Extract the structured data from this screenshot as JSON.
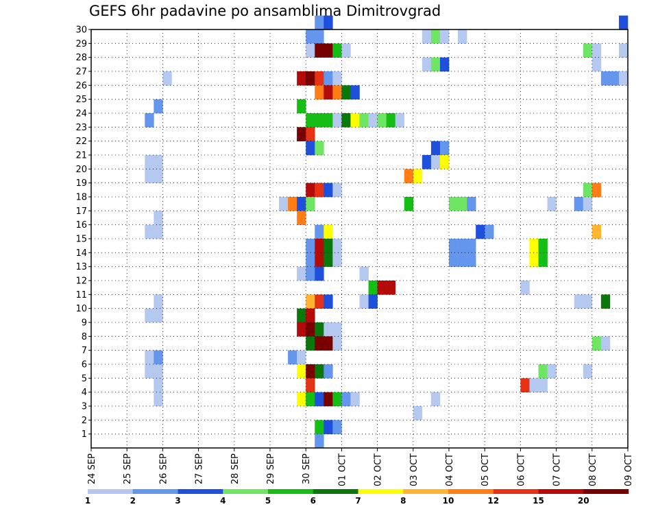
{
  "chart_data": {
    "type": "heatmap",
    "title": "GEFS 6hr padavine po ansamblima Dimitrovgrad",
    "xlabel": "",
    "ylabel": "",
    "x_tick_labels": [
      "24 SEP",
      "25 SEP",
      "26 SEP",
      "27 SEP",
      "28 SEP",
      "29 SEP",
      "30 SEP",
      "01 OCT",
      "02 OCT",
      "03 OCT",
      "04 OCT",
      "05 OCT",
      "06 OCT",
      "07 OCT",
      "08 OCT",
      "09 OCT"
    ],
    "x_range_days": [
      0,
      15
    ],
    "steps_per_day": 4,
    "y_tick_labels": [
      "1",
      "2",
      "3",
      "4",
      "5",
      "6",
      "7",
      "8",
      "9",
      "10",
      "11",
      "12",
      "13",
      "14",
      "15",
      "16",
      "17",
      "18",
      "19",
      "20",
      "21",
      "22",
      "23",
      "24",
      "25",
      "26",
      "27",
      "28",
      "29",
      "30"
    ],
    "y_range_members": [
      0,
      30
    ],
    "grid": true,
    "legend": {
      "placement": "bottom",
      "thresholds": [
        "1",
        "2",
        "3",
        "4",
        "5",
        "6",
        "7",
        "8",
        "10",
        "12",
        "15",
        "20"
      ],
      "colors": [
        "#b4c8f0",
        "#6496ee",
        "#1e50dc",
        "#6ee664",
        "#14be14",
        "#0a780a",
        "#ffff00",
        "#ffb432",
        "#ff7d14",
        "#e63214",
        "#b40a0a",
        "#780000"
      ]
    },
    "cells": [
      [
        30,
        25,
        1
      ],
      [
        30,
        26,
        2
      ],
      [
        30,
        59,
        2
      ],
      [
        29,
        24,
        1
      ],
      [
        29,
        25,
        1
      ],
      [
        29,
        37,
        0
      ],
      [
        29,
        38,
        3
      ],
      [
        29,
        39,
        0
      ],
      [
        29,
        41,
        0
      ],
      [
        28,
        24,
        0
      ],
      [
        28,
        25,
        11
      ],
      [
        28,
        26,
        11
      ],
      [
        28,
        27,
        4
      ],
      [
        28,
        28,
        0
      ],
      [
        28,
        55,
        3
      ],
      [
        28,
        56,
        0
      ],
      [
        28,
        59,
        0
      ],
      [
        27,
        37,
        0
      ],
      [
        27,
        38,
        3
      ],
      [
        27,
        39,
        2
      ],
      [
        27,
        56,
        0
      ],
      [
        26,
        8,
        0
      ],
      [
        26,
        23,
        10
      ],
      [
        26,
        24,
        11
      ],
      [
        26,
        25,
        9
      ],
      [
        26,
        26,
        1
      ],
      [
        26,
        27,
        0
      ],
      [
        26,
        57,
        1
      ],
      [
        26,
        58,
        1
      ],
      [
        26,
        59,
        0
      ],
      [
        25,
        25,
        8
      ],
      [
        25,
        26,
        10
      ],
      [
        25,
        27,
        8
      ],
      [
        25,
        28,
        5
      ],
      [
        25,
        29,
        2
      ],
      [
        24,
        7,
        1
      ],
      [
        24,
        23,
        4
      ],
      [
        23,
        6,
        1
      ],
      [
        23,
        24,
        4
      ],
      [
        23,
        25,
        4
      ],
      [
        23,
        26,
        4
      ],
      [
        23,
        27,
        0
      ],
      [
        23,
        28,
        5
      ],
      [
        23,
        29,
        6
      ],
      [
        23,
        30,
        3
      ],
      [
        23,
        31,
        0
      ],
      [
        23,
        32,
        3
      ],
      [
        23,
        33,
        4
      ],
      [
        23,
        34,
        0
      ],
      [
        22,
        23,
        11
      ],
      [
        22,
        24,
        9
      ],
      [
        21,
        24,
        2
      ],
      [
        21,
        25,
        3
      ],
      [
        21,
        38,
        2
      ],
      [
        21,
        39,
        1
      ],
      [
        20,
        6,
        0
      ],
      [
        20,
        7,
        0
      ],
      [
        20,
        37,
        2
      ],
      [
        20,
        38,
        0
      ],
      [
        20,
        39,
        6
      ],
      [
        19,
        6,
        0
      ],
      [
        19,
        7,
        0
      ],
      [
        19,
        35,
        8
      ],
      [
        19,
        36,
        6
      ],
      [
        18,
        24,
        10
      ],
      [
        18,
        25,
        9
      ],
      [
        18,
        26,
        2
      ],
      [
        18,
        27,
        0
      ],
      [
        18,
        55,
        3
      ],
      [
        18,
        56,
        8
      ],
      [
        17,
        21,
        0
      ],
      [
        17,
        22,
        8
      ],
      [
        17,
        23,
        2
      ],
      [
        17,
        24,
        3
      ],
      [
        17,
        35,
        4
      ],
      [
        17,
        40,
        3
      ],
      [
        17,
        41,
        3
      ],
      [
        17,
        42,
        1
      ],
      [
        17,
        51,
        0
      ],
      [
        17,
        54,
        1
      ],
      [
        17,
        55,
        0
      ],
      [
        16,
        23,
        8
      ],
      [
        16,
        7,
        0
      ],
      [
        15,
        6,
        0
      ],
      [
        15,
        7,
        0
      ],
      [
        15,
        25,
        1
      ],
      [
        15,
        26,
        6
      ],
      [
        15,
        43,
        2
      ],
      [
        15,
        44,
        1
      ],
      [
        15,
        56,
        7
      ],
      [
        14,
        24,
        1
      ],
      [
        14,
        25,
        10
      ],
      [
        14,
        26,
        5
      ],
      [
        14,
        27,
        0
      ],
      [
        14,
        40,
        1
      ],
      [
        14,
        41,
        1
      ],
      [
        14,
        42,
        1
      ],
      [
        14,
        49,
        6
      ],
      [
        14,
        50,
        4
      ],
      [
        13,
        24,
        1
      ],
      [
        13,
        25,
        10
      ],
      [
        13,
        26,
        5
      ],
      [
        13,
        27,
        0
      ],
      [
        13,
        40,
        1
      ],
      [
        13,
        41,
        1
      ],
      [
        13,
        42,
        1
      ],
      [
        13,
        49,
        6
      ],
      [
        13,
        50,
        4
      ],
      [
        12,
        23,
        0
      ],
      [
        12,
        24,
        1
      ],
      [
        12,
        25,
        2
      ],
      [
        12,
        30,
        0
      ],
      [
        11,
        31,
        4
      ],
      [
        11,
        32,
        10
      ],
      [
        11,
        33,
        10
      ],
      [
        11,
        48,
        0
      ],
      [
        10,
        7,
        0
      ],
      [
        10,
        24,
        7
      ],
      [
        10,
        25,
        9
      ],
      [
        10,
        26,
        2
      ],
      [
        10,
        30,
        0
      ],
      [
        10,
        31,
        2
      ],
      [
        10,
        54,
        0
      ],
      [
        10,
        55,
        0
      ],
      [
        10,
        57,
        5
      ],
      [
        9,
        6,
        0
      ],
      [
        9,
        7,
        0
      ],
      [
        9,
        23,
        5
      ],
      [
        9,
        24,
        10
      ],
      [
        8,
        23,
        10
      ],
      [
        8,
        24,
        11
      ],
      [
        8,
        25,
        5
      ],
      [
        8,
        26,
        0
      ],
      [
        8,
        27,
        0
      ],
      [
        7,
        24,
        5
      ],
      [
        7,
        25,
        11
      ],
      [
        7,
        26,
        11
      ],
      [
        7,
        27,
        0
      ],
      [
        7,
        56,
        3
      ],
      [
        7,
        57,
        0
      ],
      [
        6,
        6,
        0
      ],
      [
        6,
        7,
        1
      ],
      [
        6,
        22,
        1
      ],
      [
        6,
        23,
        0
      ],
      [
        5,
        6,
        0
      ],
      [
        5,
        7,
        0
      ],
      [
        5,
        23,
        6
      ],
      [
        5,
        24,
        11
      ],
      [
        5,
        25,
        5
      ],
      [
        5,
        26,
        1
      ],
      [
        5,
        50,
        3
      ],
      [
        5,
        51,
        0
      ],
      [
        5,
        55,
        0
      ],
      [
        4,
        7,
        0
      ],
      [
        4,
        24,
        9
      ],
      [
        4,
        48,
        9
      ],
      [
        4,
        49,
        0
      ],
      [
        4,
        50,
        0
      ],
      [
        3,
        7,
        0
      ],
      [
        3,
        23,
        6
      ],
      [
        3,
        24,
        4
      ],
      [
        3,
        25,
        2
      ],
      [
        3,
        26,
        11
      ],
      [
        3,
        27,
        4
      ],
      [
        3,
        28,
        1
      ],
      [
        3,
        29,
        0
      ],
      [
        3,
        38,
        0
      ],
      [
        2,
        36,
        0
      ],
      [
        1,
        25,
        4
      ],
      [
        1,
        26,
        2
      ],
      [
        1,
        27,
        1
      ],
      [
        0,
        25,
        1
      ]
    ]
  }
}
